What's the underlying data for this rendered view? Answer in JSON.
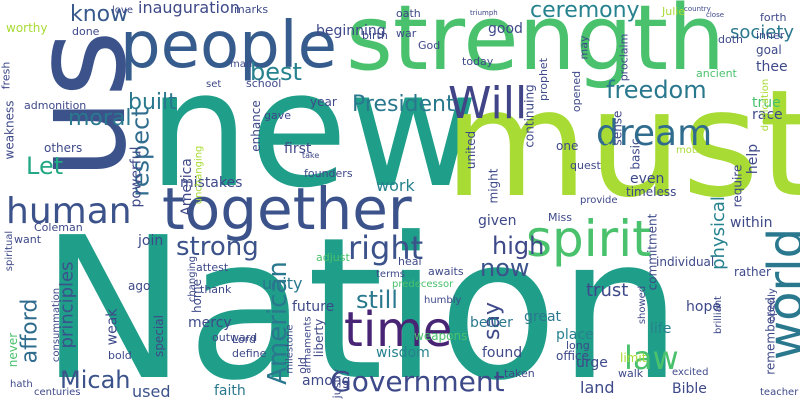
{
  "words": [
    {
      "text": "Nation",
      "color": "#1f9e89"
    },
    {
      "text": "new",
      "color": "#1f9e89"
    },
    {
      "text": "must",
      "color": "#a8db34"
    },
    {
      "text": "us",
      "color": "#3b528b"
    },
    {
      "text": "strength",
      "color": "#4ac16d"
    },
    {
      "text": "people",
      "color": "#365c8d"
    },
    {
      "text": "together",
      "color": "#3b528b"
    },
    {
      "text": "time",
      "color": "#482475"
    },
    {
      "text": "spirit",
      "color": "#4ac16d"
    },
    {
      "text": "world",
      "color": "#2a788e"
    },
    {
      "text": "Will",
      "color": "#414487"
    },
    {
      "text": "dream",
      "color": "#2f6c8e"
    },
    {
      "text": "human",
      "color": "#3b528b"
    },
    {
      "text": "freedom",
      "color": "#2a788e"
    },
    {
      "text": "Government",
      "color": "#3e4989"
    },
    {
      "text": "right",
      "color": "#3b528b"
    },
    {
      "text": "American",
      "color": "#2a788e"
    },
    {
      "text": "strong",
      "color": "#3b528b"
    },
    {
      "text": "respect",
      "color": "#2f6c8e"
    },
    {
      "text": "President",
      "color": "#2a788e"
    },
    {
      "text": "built",
      "color": "#2a788e"
    },
    {
      "text": "best",
      "color": "#26828e"
    },
    {
      "text": "moral",
      "color": "#2a788e"
    },
    {
      "text": "Let",
      "color": "#22a884"
    },
    {
      "text": "know",
      "color": "#38598c"
    },
    {
      "text": "ceremony",
      "color": "#26828e"
    },
    {
      "text": "law",
      "color": "#4ac16d"
    },
    {
      "text": "Micah",
      "color": "#3b528b"
    },
    {
      "text": "afford",
      "color": "#2f6c8e"
    },
    {
      "text": "principles",
      "color": "#3b528b"
    },
    {
      "text": "still",
      "color": "#2a788e"
    },
    {
      "text": "now",
      "color": "#3b528b"
    },
    {
      "text": "say",
      "color": "#3e4989"
    },
    {
      "text": "high",
      "color": "#3e4989"
    },
    {
      "text": "trust",
      "color": "#3e4989"
    },
    {
      "text": "physical",
      "color": "#26828e"
    },
    {
      "text": "society",
      "color": "#2a788e"
    },
    {
      "text": "inauguration",
      "color": "#3e4989"
    },
    {
      "text": "beginning",
      "color": "#3e4989"
    },
    {
      "text": "good",
      "color": "#3e4989"
    },
    {
      "text": "unity",
      "color": "#2a788e"
    },
    {
      "text": "future",
      "color": "#3e4989"
    },
    {
      "text": "used",
      "color": "#3b528b"
    },
    {
      "text": "faith",
      "color": "#2a788e"
    },
    {
      "text": "among",
      "color": "#3e4989"
    },
    {
      "text": "wisdom",
      "color": "#26828e"
    },
    {
      "text": "found",
      "color": "#3e4989"
    },
    {
      "text": "land",
      "color": "#3e4989"
    },
    {
      "text": "Bible",
      "color": "#3e4989"
    },
    {
      "text": "urge",
      "color": "#3e4989"
    },
    {
      "text": "better",
      "color": "#2a788e"
    },
    {
      "text": "great",
      "color": "#2a788e"
    },
    {
      "text": "place",
      "color": "#26828e"
    },
    {
      "text": "life",
      "color": "#26828e"
    },
    {
      "text": "hope",
      "color": "#3e4989"
    },
    {
      "text": "mercy",
      "color": "#3e4989"
    },
    {
      "text": "special",
      "color": "#3e4989"
    },
    {
      "text": "America",
      "color": "#3e4989"
    },
    {
      "text": "mistakes",
      "color": "#3e4989"
    },
    {
      "text": "work",
      "color": "#26828e"
    },
    {
      "text": "join",
      "color": "#3e4989"
    },
    {
      "text": "weak",
      "color": "#3e4989"
    },
    {
      "text": "within",
      "color": "#3e4989"
    },
    {
      "text": "powerful",
      "color": "#3e4989"
    },
    {
      "text": "others",
      "color": "#3e4989"
    },
    {
      "text": "weakness",
      "color": "#3e4989"
    },
    {
      "text": "first",
      "color": "#3e4989"
    },
    {
      "text": "given",
      "color": "#3e4989"
    },
    {
      "text": "even",
      "color": "#3e4989"
    },
    {
      "text": "help",
      "color": "#3e4989"
    },
    {
      "text": "true",
      "color": "#4ac16d"
    },
    {
      "text": "race",
      "color": "#3e4989"
    },
    {
      "text": "thee",
      "color": "#3e4989"
    },
    {
      "text": "goal",
      "color": "#3e4989"
    },
    {
      "text": "commitment",
      "color": "#3e4989"
    },
    {
      "text": "individual",
      "color": "#3e4989"
    },
    {
      "text": "continuing",
      "color": "#3e4989"
    },
    {
      "text": "basic",
      "color": "#3e4989"
    },
    {
      "text": "sense",
      "color": "#3e4989"
    },
    {
      "text": "one",
      "color": "#3e4989"
    },
    {
      "text": "might",
      "color": "#3e4989"
    },
    {
      "text": "united",
      "color": "#3e4989"
    },
    {
      "text": "ago",
      "color": "#3e4989"
    },
    {
      "text": "home",
      "color": "#3e4989"
    },
    {
      "text": "weapons",
      "color": "#4ac16d"
    },
    {
      "text": "limit",
      "color": "#a8db34"
    },
    {
      "text": "office",
      "color": "#3e4989"
    },
    {
      "text": "remembered",
      "color": "#3e4989"
    },
    {
      "text": "rather",
      "color": "#3e4989"
    },
    {
      "text": "dedication",
      "color": "#a8db34"
    },
    {
      "text": "require",
      "color": "#3e4989"
    },
    {
      "text": "timeless",
      "color": "#3e4989"
    },
    {
      "text": "year",
      "color": "#3e4989"
    },
    {
      "text": "enhance",
      "color": "#3e4989"
    },
    {
      "text": "school",
      "color": "#3e4989"
    },
    {
      "text": "attest",
      "color": "#3e4989"
    },
    {
      "text": "thank",
      "color": "#3e4989"
    },
    {
      "text": "outward",
      "color": "#3e4989"
    },
    {
      "text": "Lord",
      "color": "#3e4989"
    },
    {
      "text": "define",
      "color": "#3e4989"
    },
    {
      "text": "liberty",
      "color": "#3e4989"
    },
    {
      "text": "old",
      "color": "#3e4989"
    },
    {
      "text": "justly",
      "color": "#3e4989"
    },
    {
      "text": "taken",
      "color": "#3e4989"
    },
    {
      "text": "walk",
      "color": "#3e4989"
    },
    {
      "text": "long",
      "color": "#3e4989"
    },
    {
      "text": "Coleman",
      "color": "#3e4989"
    },
    {
      "text": "spiritual",
      "color": "#3e4989"
    },
    {
      "text": "want",
      "color": "#3e4989"
    },
    {
      "text": "never",
      "color": "#4ac16d"
    },
    {
      "text": "bold",
      "color": "#3e4989"
    },
    {
      "text": "centuries",
      "color": "#3e4989"
    },
    {
      "text": "worthy",
      "color": "#a8db34"
    },
    {
      "text": "done",
      "color": "#3e4989"
    },
    {
      "text": "fresh",
      "color": "#3e4989"
    },
    {
      "text": "admonition",
      "color": "#3e4989"
    },
    {
      "text": "love",
      "color": "#3e4989"
    },
    {
      "text": "marks",
      "color": "#3e4989"
    },
    {
      "text": "oath",
      "color": "#3e4989"
    },
    {
      "text": "birth",
      "color": "#3e4989"
    },
    {
      "text": "war",
      "color": "#3e4989"
    },
    {
      "text": "God",
      "color": "#3e4989"
    },
    {
      "text": "today",
      "color": "#3e4989"
    },
    {
      "text": "opened",
      "color": "#3e4989"
    },
    {
      "text": "prophet",
      "color": "#3e4989"
    },
    {
      "text": "may",
      "color": "#3e4989"
    },
    {
      "text": "doth",
      "color": "#3e4989"
    },
    {
      "text": "forth",
      "color": "#3e4989"
    },
    {
      "text": "inner",
      "color": "#3e4989"
    },
    {
      "text": "ancient",
      "color": "#4ac16d"
    },
    {
      "text": "proclaim",
      "color": "#3e4989"
    },
    {
      "text": "Julie",
      "color": "#a8db34"
    },
    {
      "text": "man",
      "color": "#3e4989"
    },
    {
      "text": "set",
      "color": "#3e4989"
    },
    {
      "text": "gave",
      "color": "#3e4989"
    },
    {
      "text": "unchanging",
      "color": "#a8db34"
    },
    {
      "text": "founders",
      "color": "#3e4989"
    },
    {
      "text": "adjust",
      "color": "#4ac16d"
    },
    {
      "text": "heal",
      "color": "#3e4989"
    },
    {
      "text": "awaits",
      "color": "#3e4989"
    },
    {
      "text": "terms",
      "color": "#3e4989"
    },
    {
      "text": "predecessor",
      "color": "#4ac16d"
    },
    {
      "text": "humbly",
      "color": "#3e4989"
    },
    {
      "text": "Miss",
      "color": "#3e4989"
    },
    {
      "text": "provide",
      "color": "#3e4989"
    },
    {
      "text": "quest",
      "color": "#3e4989"
    },
    {
      "text": "Two",
      "color": "#a8db34"
    },
    {
      "text": "brilliant",
      "color": "#3e4989"
    },
    {
      "text": "openly",
      "color": "#3e4989"
    },
    {
      "text": "teacher",
      "color": "#3e4989"
    },
    {
      "text": "showed",
      "color": "#3e4989"
    },
    {
      "text": "excited",
      "color": "#3e4989"
    },
    {
      "text": "milestone",
      "color": "#3e4989"
    },
    {
      "text": "armaments",
      "color": "#3e4989"
    },
    {
      "text": "changing",
      "color": "#3e4989"
    },
    {
      "text": "hath",
      "color": "#3e4989"
    },
    {
      "text": "consummation",
      "color": "#3e4989"
    },
    {
      "text": "mother",
      "color": "#a8db34"
    },
    {
      "text": "take",
      "color": "#3e4989"
    },
    {
      "text": "country",
      "color": "#3e4989"
    },
    {
      "text": "close",
      "color": "#3e4989"
    },
    {
      "text": "triumph",
      "color": "#3e4989"
    }
  ]
}
